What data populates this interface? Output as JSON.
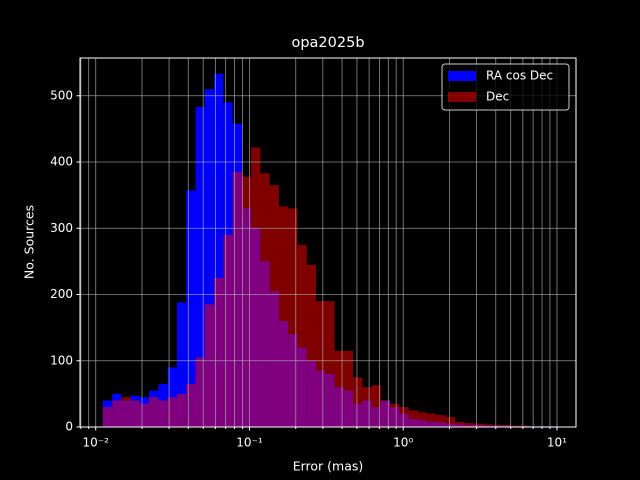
{
  "chart_data": {
    "type": "histogram",
    "title": "opa2025b",
    "x_label": "Error (mas)",
    "y_label": "No. Sources",
    "bins": [
      0.01112,
      0.01278,
      0.01468,
      0.01686,
      0.01937,
      0.02225,
      0.02557,
      0.02937,
      0.03375,
      0.03878,
      0.04457,
      0.0512,
      0.05883,
      0.0676,
      0.07766,
      0.08923,
      0.1025,
      0.1178,
      0.1353,
      0.1555,
      0.1786,
      0.2052,
      0.2358,
      0.2709,
      0.3113,
      0.3577,
      0.411,
      0.4722,
      0.5425,
      0.6233,
      0.7161,
      0.8228,
      0.9454,
      1.086,
      1.248,
      1.434,
      1.648,
      1.893,
      2.175,
      2.499,
      2.871,
      3.299,
      3.79,
      4.355,
      5.003,
      5.748,
      6.604,
      7.588,
      8.718,
      10.02
    ],
    "series": [
      {
        "name": "RA cos Dec",
        "color": "#0000ff",
        "alpha": 1,
        "values": [
          40,
          50,
          40,
          47,
          45,
          55,
          65,
          90,
          188,
          357,
          483,
          510,
          533,
          490,
          458,
          330,
          300,
          250,
          205,
          160,
          140,
          120,
          100,
          85,
          80,
          60,
          55,
          35,
          40,
          30,
          40,
          30,
          20,
          12,
          10,
          8,
          7,
          5,
          4,
          3,
          3,
          2,
          2,
          2,
          1,
          1,
          1,
          1,
          1
        ]
      },
      {
        "name": "Dec",
        "color": "#ff0000",
        "alpha": 0.5,
        "values": [
          30,
          40,
          45,
          40,
          35,
          45,
          40,
          45,
          50,
          65,
          105,
          185,
          225,
          290,
          385,
          378,
          422,
          383,
          365,
          333,
          330,
          275,
          245,
          190,
          190,
          115,
          115,
          75,
          60,
          63,
          40,
          35,
          30,
          25,
          22,
          20,
          18,
          15,
          8,
          6,
          5,
          4,
          3,
          3,
          2,
          2,
          1,
          1,
          1
        ]
      }
    ],
    "xscale": "log",
    "xlim": [
      0.0079,
      13.3
    ],
    "ylim": [
      0,
      557
    ],
    "xticks": [
      {
        "value": 0.01,
        "label": "10⁻²"
      },
      {
        "value": 0.1,
        "label": "10⁻¹"
      },
      {
        "value": 1,
        "label": "10⁰"
      },
      {
        "value": 10,
        "label": "10¹"
      }
    ],
    "xticks_minor": [
      0.008,
      0.009,
      0.02,
      0.03,
      0.04,
      0.05,
      0.06,
      0.07,
      0.08,
      0.09,
      0.2,
      0.3,
      0.4,
      0.5,
      0.6,
      0.7,
      0.8,
      0.9,
      2,
      3,
      4,
      5,
      6,
      7,
      8,
      9
    ],
    "yticks": [
      0,
      100,
      200,
      300,
      400,
      500
    ],
    "grid": true,
    "legend": "upper right"
  }
}
